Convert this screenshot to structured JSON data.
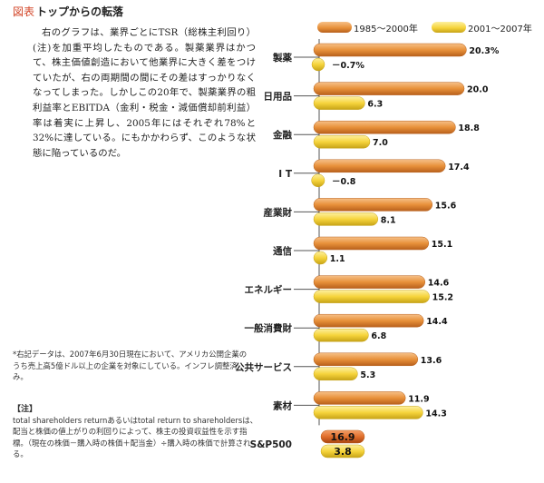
{
  "header": {
    "tag": "図表",
    "title": "トップからの転落"
  },
  "body_text": "右のグラフは、業界ごとにTSR（総株主利回り）(注)を加重平均したものである。製薬業界はかつて、株主価値創造において他業界に大きく差をつけていたが、右の両期間の間にその差はすっかりなくなってしまった。しかしこの20年で、製薬業界の粗利益率とEBITDA（金利・税金・減価償却前利益）率は着実に上昇し、2005年にはそれぞれ78%と32%に達している。にもかかわらず、このような状態に陥っているのだ。",
  "footnote": "*右記データは、2007年6月30日現在において、アメリカ公開企業のうち売上高5億ドル以上の企業を対象にしている。インフレ調整済み。",
  "note": {
    "head": "【注】",
    "body": "total shareholders returnあるいはtotal return to shareholdersは、配当と株価の値上がりの利回りによって、株主の投資収益性を示す指標。（現在の株価－購入時の株価＋配当金）÷購入時の株価で計算される。"
  },
  "colors": {
    "series1": "#e8913a",
    "series1_light": "#f6c088",
    "series1_dark": "#b8601c",
    "series2": "#f6d43c",
    "series2_light": "#fdf0a0",
    "series2_dark": "#c7a317",
    "sp_series1": "#e06e2c",
    "sp_series1_dark": "#a84410",
    "sp_series1_light": "#f3a06a",
    "axis": "#555555"
  },
  "chart_data": {
    "type": "bar",
    "orientation": "horizontal",
    "categories": [
      "製薬",
      "日用品",
      "金融",
      "I T",
      "産業財",
      "通信",
      "エネルギー",
      "一般消費財",
      "公共サービス",
      "素材",
      "S&P500"
    ],
    "series": [
      {
        "name": "1985～2000年",
        "values": [
          20.3,
          20.0,
          18.8,
          17.4,
          15.6,
          15.1,
          14.6,
          14.4,
          13.6,
          11.9,
          16.9
        ],
        "labels": [
          "20.3%",
          "20.0",
          "18.8",
          "17.4",
          "15.6",
          "15.1",
          "14.6",
          "14.4",
          "13.6",
          "11.9",
          "16.9"
        ]
      },
      {
        "name": "2001～2007年",
        "values": [
          -0.7,
          6.3,
          7.0,
          -0.8,
          8.1,
          1.1,
          15.2,
          6.8,
          5.3,
          14.3,
          3.8
        ],
        "labels": [
          "－0.7%",
          "6.3",
          "7.0",
          "－0.8",
          "8.1",
          "1.1",
          "15.2",
          "6.8",
          "5.3",
          "14.3",
          "3.8"
        ]
      }
    ],
    "legend_position": "top-right",
    "grid": false
  }
}
